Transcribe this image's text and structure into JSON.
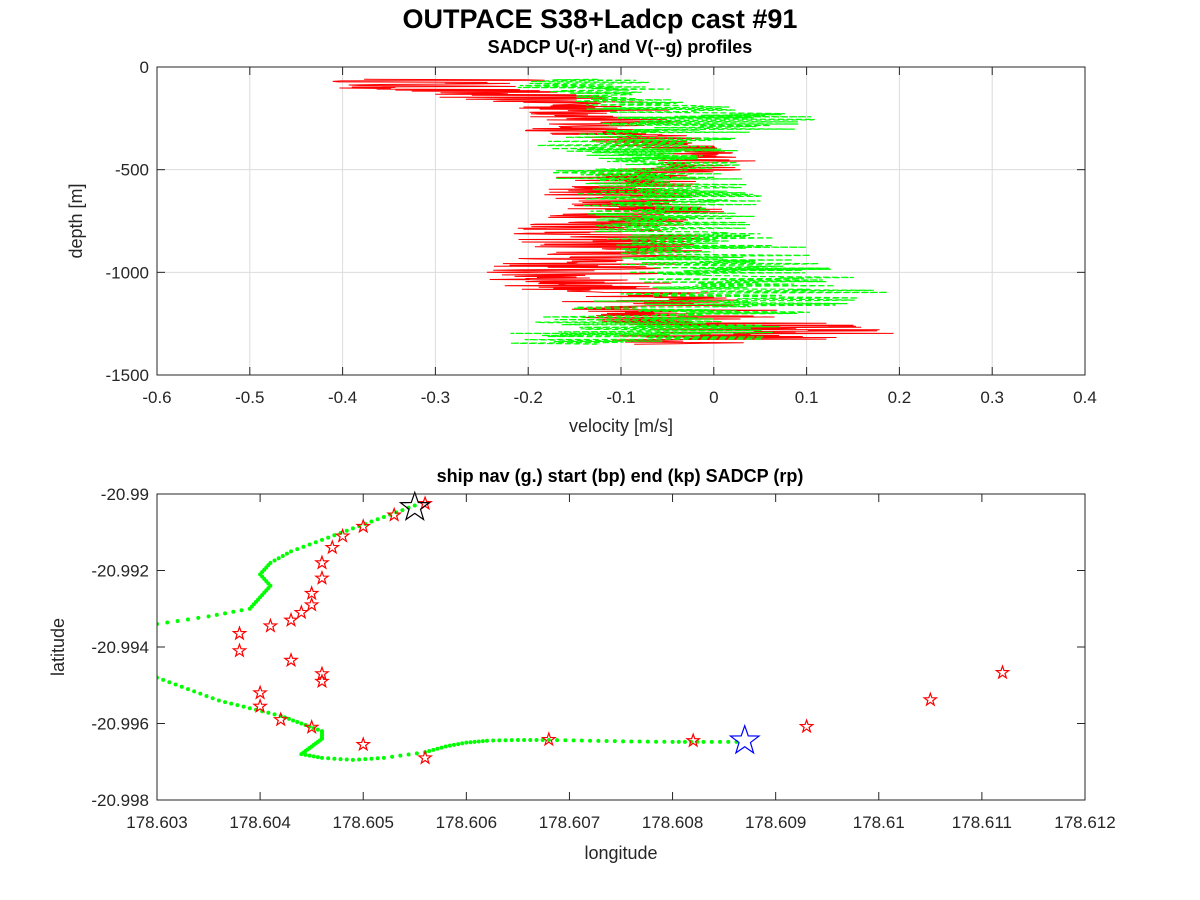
{
  "figure": {
    "title": "OUTPACE S38+Ladcp cast #91"
  },
  "chart_data": [
    {
      "type": "line",
      "title": "SADCP U(-r) and V(--g) profiles",
      "xlabel": "velocity [m/s]",
      "ylabel": "depth [m]",
      "xlim": [
        -0.6,
        0.4
      ],
      "ylim": [
        -1500,
        0
      ],
      "xticks": [
        "-0.6",
        "-0.5",
        "-0.4",
        "-0.3",
        "-0.2",
        "-0.1",
        "0",
        "0.1",
        "0.2",
        "0.3",
        "0.4"
      ],
      "yticks": [
        "0",
        "-500",
        "-1000",
        "-1500"
      ],
      "grid": true,
      "series": [
        {
          "name": "U",
          "color": "#ff0000",
          "style": "solid",
          "depth": [
            -60,
            -90,
            -150,
            -200,
            -250,
            -300,
            -380,
            -420,
            -470,
            -520,
            -600,
            -700,
            -800,
            -900,
            -1000,
            -1050,
            -1100,
            -1200,
            -1300,
            -1350
          ],
          "center": [
            -0.28,
            -0.33,
            -0.2,
            -0.13,
            -0.12,
            -0.13,
            -0.05,
            -0.03,
            0.0,
            -0.08,
            -0.1,
            -0.07,
            -0.12,
            -0.1,
            -0.16,
            -0.14,
            -0.1,
            -0.03,
            0.05,
            -0.05
          ],
          "spread": [
            0.12,
            0.11,
            0.1,
            0.09,
            0.09,
            0.09,
            0.06,
            0.06,
            0.06,
            0.09,
            0.09,
            0.09,
            0.11,
            0.1,
            0.11,
            0.1,
            0.1,
            0.12,
            0.16,
            0.1
          ]
        },
        {
          "name": "V",
          "color": "#00ff00",
          "style": "dashed",
          "depth": [
            -60,
            -90,
            -150,
            -200,
            -250,
            -300,
            -380,
            -420,
            -470,
            -520,
            -600,
            -700,
            -800,
            -900,
            -1000,
            -1050,
            -1100,
            -1200,
            -1300,
            -1350
          ],
          "center": [
            -0.13,
            -0.14,
            -0.09,
            -0.05,
            0.0,
            -0.02,
            -0.1,
            -0.06,
            -0.06,
            -0.08,
            -0.06,
            -0.04,
            -0.03,
            0.0,
            0.02,
            0.05,
            0.05,
            -0.05,
            -0.08,
            -0.1
          ],
          "spread": [
            0.08,
            0.08,
            0.08,
            0.1,
            0.12,
            0.11,
            0.11,
            0.1,
            0.1,
            0.11,
            0.11,
            0.1,
            0.1,
            0.11,
            0.12,
            0.13,
            0.16,
            0.15,
            0.15,
            0.14
          ]
        }
      ]
    },
    {
      "type": "scatter",
      "title": "ship nav (g.) start (bp) end (kp) SADCP (rp)",
      "xlabel": "longitude",
      "ylabel": "latitude",
      "xlim": [
        178.603,
        178.612
      ],
      "ylim": [
        -20.998,
        -20.99
      ],
      "xticks": [
        "178.603",
        "178.604",
        "178.605",
        "178.606",
        "178.607",
        "178.608",
        "178.609",
        "178.61",
        "178.611",
        "178.612"
      ],
      "yticks": [
        "-20.99",
        "-20.992",
        "-20.994",
        "-20.996",
        "-20.998"
      ],
      "grid": false,
      "ship_nav": {
        "color": "#00ff00",
        "lon": [
          178.6055,
          178.6052,
          178.6049,
          178.6046,
          178.6043,
          178.6041,
          178.604,
          178.6041,
          178.604,
          178.6039,
          178.6035,
          178.603,
          178.6026,
          178.6022,
          178.6022,
          178.6026,
          178.603,
          178.6033,
          178.6036,
          178.6039,
          178.6042,
          178.6044,
          178.6046,
          178.6046,
          178.6045,
          178.6044,
          178.6046,
          178.6049,
          178.6052,
          178.6056,
          178.6058,
          178.606,
          178.6062,
          178.6065,
          178.6068,
          178.6072,
          178.6076,
          178.608,
          178.6083,
          178.6087
        ],
        "lat": [
          -20.9903,
          -20.9906,
          -20.9909,
          -20.9912,
          -20.9915,
          -20.9918,
          -20.9921,
          -20.9924,
          -20.9927,
          -20.993,
          -20.9932,
          -20.9934,
          -20.9936,
          -20.9939,
          -20.9942,
          -20.9945,
          -20.9948,
          -20.9951,
          -20.9954,
          -20.9956,
          -20.9958,
          -20.996,
          -20.9962,
          -20.9964,
          -20.9966,
          -20.9968,
          -20.9969,
          -20.99695,
          -20.9969,
          -20.99675,
          -20.9966,
          -20.9965,
          -20.99645,
          -20.99643,
          -20.99643,
          -20.99645,
          -20.99647,
          -20.99648,
          -20.99648,
          -20.99648
        ]
      },
      "start": {
        "color": "#0000ff",
        "lon": 178.6087,
        "lat": -20.99645
      },
      "end": {
        "color": "#000000",
        "lon": 178.6055,
        "lat": -20.99035
      },
      "sadcp": {
        "color": "#ff0000",
        "fill": "#ffff00",
        "lon": [
          178.6056,
          178.6053,
          178.605,
          178.6048,
          178.6047,
          178.6046,
          178.6046,
          178.6045,
          178.6045,
          178.6044,
          178.6043,
          178.6041,
          178.6038,
          178.6038,
          178.6043,
          178.6046,
          178.6046,
          178.604,
          178.604,
          178.6042,
          178.6045,
          178.605,
          178.6056,
          178.6068,
          178.6082,
          178.6093,
          178.6105,
          178.6112
        ],
        "lat": [
          -20.99025,
          -20.99055,
          -20.99085,
          -20.9911,
          -20.9914,
          -20.9918,
          -20.9922,
          -20.9926,
          -20.9929,
          -20.9931,
          -20.9933,
          -20.99345,
          -20.99365,
          -20.9941,
          -20.99435,
          -20.9947,
          -20.9949,
          -20.9952,
          -20.99555,
          -20.9959,
          -20.9961,
          -20.99655,
          -20.9969,
          -20.99642,
          -20.99645,
          -20.99608,
          -20.99538,
          -20.99467
        ]
      }
    }
  ]
}
